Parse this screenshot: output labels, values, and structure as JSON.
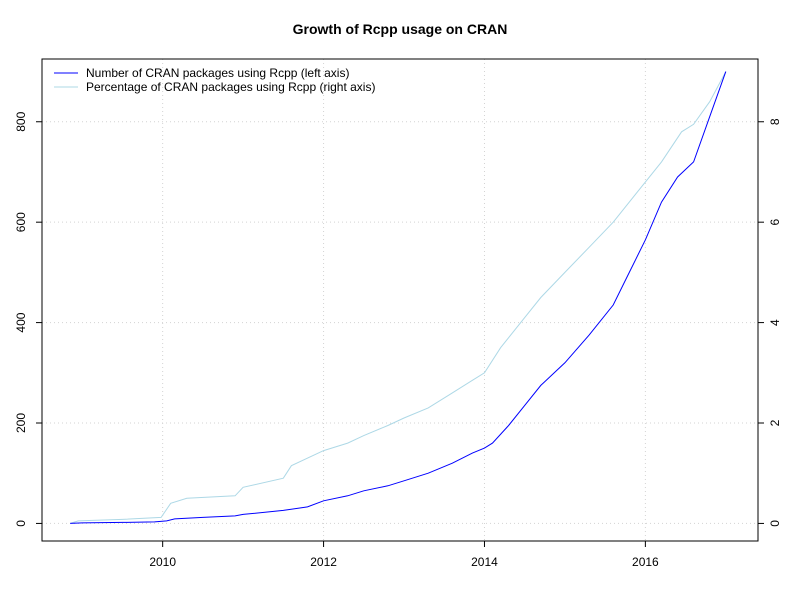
{
  "chart_data": {
    "type": "line",
    "title": "Growth of Rcpp usage on CRAN",
    "xlabel": "",
    "ylabel": "",
    "xlim": [
      2008.5,
      2017.4
    ],
    "ylim": [
      -35,
      925
    ],
    "ylim_right": [
      -0.35,
      9.25
    ],
    "x_ticks": [
      2010,
      2012,
      2014,
      2016
    ],
    "x_tick_labels": [
      "2010",
      "2012",
      "2014",
      "2016"
    ],
    "y_ticks_left": [
      0,
      200,
      400,
      600,
      800
    ],
    "y_tick_labels_left": [
      "0",
      "200",
      "400",
      "600",
      "800"
    ],
    "y_ticks_right": [
      0,
      2,
      4,
      6,
      8
    ],
    "y_tick_labels_right": [
      "0",
      "2",
      "4",
      "6",
      "8"
    ],
    "grid": true,
    "legend_position": "top-left",
    "series": [
      {
        "name": "Number of CRAN packages using Rcpp (left axis)",
        "axis": "left",
        "color": "#0000ff",
        "points": [
          [
            2008.85,
            0
          ],
          [
            2009.0,
            1
          ],
          [
            2009.5,
            2
          ],
          [
            2009.9,
            3
          ],
          [
            2010.05,
            5
          ],
          [
            2010.15,
            9
          ],
          [
            2010.5,
            12
          ],
          [
            2010.9,
            15
          ],
          [
            2011.0,
            18
          ],
          [
            2011.5,
            26
          ],
          [
            2011.8,
            33
          ],
          [
            2012.0,
            45
          ],
          [
            2012.3,
            55
          ],
          [
            2012.5,
            65
          ],
          [
            2012.8,
            75
          ],
          [
            2013.0,
            85
          ],
          [
            2013.3,
            100
          ],
          [
            2013.6,
            120
          ],
          [
            2013.85,
            140
          ],
          [
            2014.0,
            150
          ],
          [
            2014.1,
            160
          ],
          [
            2014.3,
            195
          ],
          [
            2014.5,
            235
          ],
          [
            2014.7,
            275
          ],
          [
            2015.0,
            320
          ],
          [
            2015.3,
            375
          ],
          [
            2015.6,
            435
          ],
          [
            2015.8,
            500
          ],
          [
            2016.0,
            565
          ],
          [
            2016.2,
            640
          ],
          [
            2016.4,
            690
          ],
          [
            2016.6,
            720
          ],
          [
            2016.8,
            810
          ],
          [
            2017.0,
            900
          ]
        ]
      },
      {
        "name": "Percentage of CRAN packages using Rcpp (right axis)",
        "axis": "right",
        "color": "#add8e6",
        "points": [
          [
            2008.85,
            0.0
          ],
          [
            2008.95,
            0.05
          ],
          [
            2009.5,
            0.08
          ],
          [
            2009.98,
            0.12
          ],
          [
            2010.1,
            0.4
          ],
          [
            2010.3,
            0.5
          ],
          [
            2010.9,
            0.55
          ],
          [
            2011.0,
            0.72
          ],
          [
            2011.5,
            0.9
          ],
          [
            2011.6,
            1.15
          ],
          [
            2012.0,
            1.45
          ],
          [
            2012.3,
            1.6
          ],
          [
            2012.5,
            1.75
          ],
          [
            2012.8,
            1.95
          ],
          [
            2013.0,
            2.1
          ],
          [
            2013.3,
            2.3
          ],
          [
            2013.6,
            2.6
          ],
          [
            2013.85,
            2.85
          ],
          [
            2014.0,
            3.0
          ],
          [
            2014.2,
            3.5
          ],
          [
            2014.5,
            4.1
          ],
          [
            2014.7,
            4.5
          ],
          [
            2015.0,
            5.0
          ],
          [
            2015.3,
            5.5
          ],
          [
            2015.6,
            6.0
          ],
          [
            2015.9,
            6.6
          ],
          [
            2016.2,
            7.2
          ],
          [
            2016.45,
            7.8
          ],
          [
            2016.6,
            7.95
          ],
          [
            2016.8,
            8.4
          ],
          [
            2017.0,
            9.0
          ]
        ]
      }
    ]
  }
}
